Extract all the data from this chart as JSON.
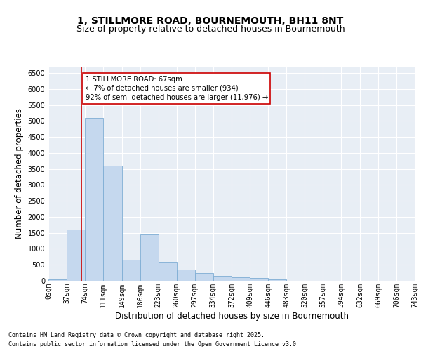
{
  "title_line1": "1, STILLMORE ROAD, BOURNEMOUTH, BH11 8NT",
  "title_line2": "Size of property relative to detached houses in Bournemouth",
  "xlabel": "Distribution of detached houses by size in Bournemouth",
  "ylabel": "Number of detached properties",
  "footnote1": "Contains HM Land Registry data © Crown copyright and database right 2025.",
  "footnote2": "Contains public sector information licensed under the Open Government Licence v3.0.",
  "bin_edges": [
    0,
    37,
    74,
    111,
    149,
    186,
    223,
    260,
    297,
    334,
    372,
    409,
    446,
    483,
    520,
    557,
    594,
    632,
    669,
    706,
    743
  ],
  "bin_labels": [
    "0sqm",
    "37sqm",
    "74sqm",
    "111sqm",
    "149sqm",
    "186sqm",
    "223sqm",
    "260sqm",
    "297sqm",
    "334sqm",
    "372sqm",
    "409sqm",
    "446sqm",
    "483sqm",
    "520sqm",
    "557sqm",
    "594sqm",
    "632sqm",
    "669sqm",
    "706sqm",
    "743sqm"
  ],
  "counts": [
    50,
    1600,
    5100,
    3600,
    650,
    1450,
    600,
    350,
    250,
    150,
    100,
    80,
    50,
    0,
    0,
    0,
    0,
    0,
    0,
    0
  ],
  "bar_color": "#c5d8ee",
  "bar_edge_color": "#7eadd4",
  "property_size": 67,
  "property_line_color": "#cc0000",
  "annotation_text": "1 STILLMORE ROAD: 67sqm\n← 7% of detached houses are smaller (934)\n92% of semi-detached houses are larger (11,976) →",
  "annotation_box_color": "#ffffff",
  "annotation_box_edge": "#cc0000",
  "ylim": [
    0,
    6700
  ],
  "yticks": [
    0,
    500,
    1000,
    1500,
    2000,
    2500,
    3000,
    3500,
    4000,
    4500,
    5000,
    5500,
    6000,
    6500
  ],
  "bg_color": "#e8eef5",
  "fig_bg_color": "#ffffff",
  "grid_color": "#ffffff",
  "title_fontsize": 10,
  "subtitle_fontsize": 9,
  "axis_label_fontsize": 8.5,
  "tick_fontsize": 7
}
